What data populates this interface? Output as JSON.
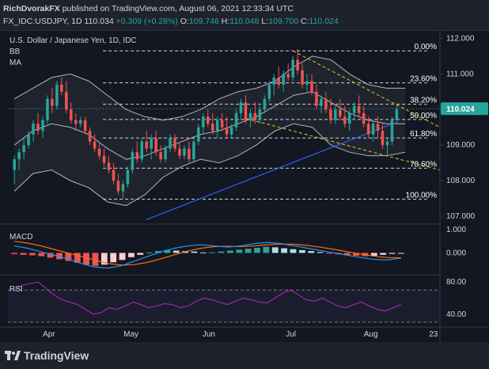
{
  "header": {
    "author": "RichDvorakFX",
    "published": "published on TradingView.com, August 06, 2021 12:33:34 UTC",
    "symbol": "FX_IDC:USDJPY, 1D",
    "last": "110.034",
    "change": "+0.309 (+0.28%)",
    "open_label": "O:",
    "open": "109.746",
    "high_label": "H:",
    "high": "110.048",
    "low_label": "L:",
    "low": "109.700",
    "close_label": "C:",
    "close": "110.024"
  },
  "legend": {
    "title": "U.S. Dollar / Japanese Yen, 1D, IDC",
    "bb": "BB",
    "ma": "MA"
  },
  "panes": {
    "macd_label": "MACD",
    "rsi_label": "RSI"
  },
  "price_badge": "110.024",
  "footer": {
    "brand": "TradingView"
  },
  "colors": {
    "background": "#131722",
    "bull": "#26a69a",
    "bear": "#ef5350",
    "bollinger": "#b2b5be",
    "moving_average": "#2962ff",
    "trendline": "#f0c419",
    "macd_line": "#2196f3",
    "signal_line": "#ff6d00",
    "rsi_line": "#9c27b0"
  },
  "chart_data": [
    {
      "type": "candlestick",
      "title": "U.S. Dollar / Japanese Yen, 1D, IDC",
      "ylim": [
        106.8,
        112.1
      ],
      "y_ticks": [
        112.0,
        111.0,
        110.0,
        109.0,
        108.0,
        107.0
      ],
      "y_tick_labels": [
        "112.000",
        "111.000",
        "110.000",
        "109.000",
        "108.000",
        "107.000"
      ],
      "x_ticks": [
        "Apr",
        "May",
        "Jun",
        "Jul",
        "Aug",
        "23"
      ],
      "candles": [
        {
          "o": 108.3,
          "h": 108.7,
          "l": 107.9,
          "c": 108.6
        },
        {
          "o": 108.6,
          "h": 108.9,
          "l": 108.3,
          "c": 108.8
        },
        {
          "o": 108.8,
          "h": 109.2,
          "l": 108.6,
          "c": 109.0
        },
        {
          "o": 109.0,
          "h": 109.4,
          "l": 108.9,
          "c": 109.3
        },
        {
          "o": 109.3,
          "h": 109.7,
          "l": 109.1,
          "c": 109.6
        },
        {
          "o": 109.6,
          "h": 109.9,
          "l": 109.3,
          "c": 109.4
        },
        {
          "o": 109.4,
          "h": 109.8,
          "l": 109.2,
          "c": 109.7
        },
        {
          "o": 109.7,
          "h": 110.4,
          "l": 109.6,
          "c": 110.3
        },
        {
          "o": 110.3,
          "h": 110.6,
          "l": 109.9,
          "c": 110.1
        },
        {
          "o": 110.1,
          "h": 110.8,
          "l": 110.0,
          "c": 110.7
        },
        {
          "o": 110.7,
          "h": 110.9,
          "l": 110.4,
          "c": 110.5
        },
        {
          "o": 110.5,
          "h": 110.8,
          "l": 109.9,
          "c": 110.0
        },
        {
          "o": 110.0,
          "h": 110.2,
          "l": 109.6,
          "c": 109.7
        },
        {
          "o": 109.7,
          "h": 109.9,
          "l": 109.4,
          "c": 109.6
        },
        {
          "o": 109.6,
          "h": 109.8,
          "l": 109.5,
          "c": 109.7
        },
        {
          "o": 109.7,
          "h": 109.8,
          "l": 109.3,
          "c": 109.4
        },
        {
          "o": 109.4,
          "h": 109.5,
          "l": 109.0,
          "c": 109.1
        },
        {
          "o": 109.1,
          "h": 109.3,
          "l": 108.8,
          "c": 108.9
        },
        {
          "o": 108.9,
          "h": 109.1,
          "l": 108.6,
          "c": 108.7
        },
        {
          "o": 108.7,
          "h": 108.9,
          "l": 108.4,
          "c": 108.5
        },
        {
          "o": 108.5,
          "h": 108.7,
          "l": 108.2,
          "c": 108.3
        },
        {
          "o": 108.3,
          "h": 108.5,
          "l": 107.9,
          "c": 108.0
        },
        {
          "o": 108.0,
          "h": 108.2,
          "l": 107.6,
          "c": 107.7
        },
        {
          "o": 107.7,
          "h": 108.0,
          "l": 107.5,
          "c": 107.9
        },
        {
          "o": 107.9,
          "h": 108.4,
          "l": 107.8,
          "c": 108.3
        },
        {
          "o": 108.3,
          "h": 108.9,
          "l": 108.2,
          "c": 108.8
        },
        {
          "o": 108.8,
          "h": 109.1,
          "l": 108.5,
          "c": 108.6
        },
        {
          "o": 108.6,
          "h": 109.2,
          "l": 108.5,
          "c": 109.1
        },
        {
          "o": 109.1,
          "h": 109.4,
          "l": 108.8,
          "c": 108.9
        },
        {
          "o": 108.9,
          "h": 109.3,
          "l": 108.6,
          "c": 109.2
        },
        {
          "o": 109.2,
          "h": 109.4,
          "l": 108.7,
          "c": 108.8
        },
        {
          "o": 108.8,
          "h": 109.0,
          "l": 108.5,
          "c": 108.6
        },
        {
          "o": 108.6,
          "h": 109.0,
          "l": 108.5,
          "c": 108.9
        },
        {
          "o": 108.9,
          "h": 109.3,
          "l": 108.8,
          "c": 109.2
        },
        {
          "o": 109.2,
          "h": 109.3,
          "l": 108.8,
          "c": 108.9
        },
        {
          "o": 108.9,
          "h": 109.1,
          "l": 108.6,
          "c": 108.7
        },
        {
          "o": 108.7,
          "h": 109.0,
          "l": 108.6,
          "c": 108.9
        },
        {
          "o": 108.9,
          "h": 109.1,
          "l": 108.5,
          "c": 108.6
        },
        {
          "o": 108.6,
          "h": 109.2,
          "l": 108.5,
          "c": 109.1
        },
        {
          "o": 109.1,
          "h": 109.6,
          "l": 109.0,
          "c": 109.5
        },
        {
          "o": 109.5,
          "h": 109.9,
          "l": 109.3,
          "c": 109.8
        },
        {
          "o": 109.8,
          "h": 110.0,
          "l": 109.5,
          "c": 109.6
        },
        {
          "o": 109.6,
          "h": 109.9,
          "l": 109.3,
          "c": 109.4
        },
        {
          "o": 109.4,
          "h": 109.8,
          "l": 109.2,
          "c": 109.7
        },
        {
          "o": 109.7,
          "h": 109.9,
          "l": 109.4,
          "c": 109.5
        },
        {
          "o": 109.5,
          "h": 109.8,
          "l": 109.2,
          "c": 109.3
        },
        {
          "o": 109.3,
          "h": 109.6,
          "l": 109.2,
          "c": 109.5
        },
        {
          "o": 109.5,
          "h": 110.0,
          "l": 109.4,
          "c": 109.9
        },
        {
          "o": 109.9,
          "h": 110.3,
          "l": 109.7,
          "c": 110.2
        },
        {
          "o": 110.2,
          "h": 110.4,
          "l": 109.6,
          "c": 109.7
        },
        {
          "o": 109.7,
          "h": 110.0,
          "l": 109.5,
          "c": 109.9
        },
        {
          "o": 109.9,
          "h": 110.2,
          "l": 109.6,
          "c": 109.7
        },
        {
          "o": 109.7,
          "h": 110.1,
          "l": 109.6,
          "c": 110.0
        },
        {
          "o": 110.0,
          "h": 110.4,
          "l": 109.9,
          "c": 110.3
        },
        {
          "o": 110.3,
          "h": 110.8,
          "l": 110.2,
          "c": 110.7
        },
        {
          "o": 110.7,
          "h": 111.0,
          "l": 110.4,
          "c": 110.9
        },
        {
          "o": 110.9,
          "h": 111.2,
          "l": 110.6,
          "c": 110.7
        },
        {
          "o": 110.7,
          "h": 111.1,
          "l": 110.5,
          "c": 111.0
        },
        {
          "o": 111.0,
          "h": 111.3,
          "l": 110.8,
          "c": 110.9
        },
        {
          "o": 110.9,
          "h": 111.5,
          "l": 110.8,
          "c": 111.4
        },
        {
          "o": 111.4,
          "h": 111.7,
          "l": 111.0,
          "c": 111.1
        },
        {
          "o": 111.1,
          "h": 111.3,
          "l": 110.6,
          "c": 110.7
        },
        {
          "o": 110.7,
          "h": 111.0,
          "l": 110.5,
          "c": 110.8
        },
        {
          "o": 110.8,
          "h": 111.0,
          "l": 110.4,
          "c": 110.5
        },
        {
          "o": 110.5,
          "h": 110.7,
          "l": 110.0,
          "c": 110.1
        },
        {
          "o": 110.1,
          "h": 110.4,
          "l": 109.9,
          "c": 110.3
        },
        {
          "o": 110.3,
          "h": 110.5,
          "l": 109.9,
          "c": 110.0
        },
        {
          "o": 110.0,
          "h": 110.3,
          "l": 109.6,
          "c": 109.7
        },
        {
          "o": 109.7,
          "h": 110.1,
          "l": 109.6,
          "c": 110.0
        },
        {
          "o": 110.0,
          "h": 110.3,
          "l": 109.7,
          "c": 109.8
        },
        {
          "o": 109.8,
          "h": 110.1,
          "l": 109.5,
          "c": 109.6
        },
        {
          "o": 109.6,
          "h": 110.0,
          "l": 109.4,
          "c": 109.9
        },
        {
          "o": 109.9,
          "h": 110.2,
          "l": 109.7,
          "c": 110.1
        },
        {
          "o": 110.1,
          "h": 110.4,
          "l": 109.8,
          "c": 109.9
        },
        {
          "o": 109.9,
          "h": 110.1,
          "l": 109.5,
          "c": 109.6
        },
        {
          "o": 109.6,
          "h": 109.8,
          "l": 109.2,
          "c": 109.3
        },
        {
          "o": 109.3,
          "h": 109.7,
          "l": 109.1,
          "c": 109.6
        },
        {
          "o": 109.6,
          "h": 109.8,
          "l": 109.2,
          "c": 109.4
        },
        {
          "o": 109.4,
          "h": 109.6,
          "l": 108.9,
          "c": 109.0
        },
        {
          "o": 109.0,
          "h": 109.2,
          "l": 108.7,
          "c": 109.1
        },
        {
          "o": 109.1,
          "h": 109.8,
          "l": 109.0,
          "c": 109.7
        },
        {
          "o": 109.7,
          "h": 110.1,
          "l": 109.6,
          "c": 110.0
        }
      ],
      "bollinger_bands": {
        "upper": [
          110.3,
          110.6,
          110.9,
          111.0,
          110.8,
          110.4,
          110.0,
          109.8,
          109.7,
          109.8,
          110.0,
          110.3,
          110.5,
          110.6,
          110.8,
          111.2,
          111.5,
          111.4,
          111.0,
          110.7,
          110.6,
          110.6
        ],
        "middle": [
          109.0,
          109.4,
          109.6,
          109.5,
          109.3,
          108.9,
          108.6,
          108.7,
          108.9,
          109.1,
          109.3,
          109.4,
          109.6,
          109.8,
          110.1,
          110.4,
          110.5,
          110.2,
          109.9,
          109.7,
          109.6,
          109.6
        ],
        "lower": [
          107.7,
          108.2,
          108.3,
          108.0,
          107.8,
          107.4,
          107.3,
          107.6,
          108.1,
          108.4,
          108.6,
          108.5,
          108.7,
          109.0,
          109.4,
          109.6,
          109.5,
          109.0,
          108.8,
          108.7,
          108.7,
          108.8
        ]
      },
      "moving_average": [
        {
          "x": 0.32,
          "y": 106.9
        },
        {
          "x": 0.89,
          "y": 109.6
        }
      ],
      "fibonacci_levels": [
        {
          "label": "0.00%",
          "price": 111.65
        },
        {
          "label": "23.60%",
          "price": 110.75
        },
        {
          "label": "38.20%",
          "price": 110.15
        },
        {
          "label": "50.00%",
          "price": 109.72
        },
        {
          "label": "61.80%",
          "price": 109.2
        },
        {
          "label": "78.60%",
          "price": 108.35
        },
        {
          "label": "100.00%",
          "price": 107.48
        }
      ],
      "trendlines": [
        {
          "from": [
            0.66,
            111.65
          ],
          "to": [
            1.0,
            109.5
          ]
        },
        {
          "from": [
            0.55,
            109.75
          ],
          "to": [
            1.0,
            108.3
          ]
        }
      ]
    },
    {
      "type": "macd",
      "title": "MACD",
      "ylim": [
        -0.9,
        1.2
      ],
      "y_ticks": [
        1.0,
        0.0
      ],
      "y_tick_labels": [
        "1.000",
        "0.000"
      ],
      "histogram": [
        -0.05,
        -0.08,
        -0.1,
        -0.14,
        -0.2,
        -0.27,
        -0.34,
        -0.42,
        -0.5,
        -0.55,
        -0.5,
        -0.4,
        -0.3,
        -0.18,
        -0.08,
        0.02,
        0.08,
        0.12,
        0.1,
        0.08,
        0.06,
        0.02,
        0.03,
        0.06,
        0.1,
        0.14,
        0.18,
        0.22,
        0.26,
        0.24,
        0.2,
        0.16,
        0.12,
        0.08,
        0.04,
        -0.02,
        -0.06,
        -0.1,
        -0.12,
        -0.14,
        -0.12,
        -0.08,
        -0.04,
        -0.02
      ],
      "macd_line": [
        0.3,
        0.2,
        0.05,
        -0.1,
        -0.25,
        -0.45,
        -0.6,
        -0.65,
        -0.55,
        -0.35,
        -0.15,
        0.05,
        0.2,
        0.3,
        0.35,
        0.3,
        0.25,
        0.3,
        0.4,
        0.45,
        0.4,
        0.3,
        0.2,
        0.1,
        0.0,
        -0.1,
        -0.2,
        -0.28,
        -0.3,
        -0.22
      ],
      "signal_line": [
        0.5,
        0.42,
        0.3,
        0.15,
        0.0,
        -0.15,
        -0.3,
        -0.45,
        -0.52,
        -0.5,
        -0.4,
        -0.25,
        -0.08,
        0.08,
        0.2,
        0.27,
        0.28,
        0.27,
        0.3,
        0.35,
        0.38,
        0.37,
        0.32,
        0.24,
        0.15,
        0.05,
        -0.05,
        -0.14,
        -0.2,
        -0.21
      ]
    },
    {
      "type": "line",
      "title": "RSI",
      "ylim": [
        25,
        88
      ],
      "y_ticks": [
        80.0,
        40.0
      ],
      "y_tick_labels": [
        "80.00",
        "40.00"
      ],
      "bands": [
        70,
        30
      ],
      "values": [
        70,
        76,
        78,
        80,
        72,
        64,
        58,
        55,
        52,
        46,
        40,
        42,
        48,
        46,
        50,
        55,
        52,
        48,
        50,
        53,
        52,
        48,
        50,
        56,
        60,
        58,
        55,
        52,
        56,
        60,
        58,
        55,
        54,
        60,
        66,
        70,
        64,
        58,
        56,
        60,
        55,
        50,
        48,
        52,
        55,
        50,
        46,
        44,
        48,
        52
      ]
    }
  ]
}
